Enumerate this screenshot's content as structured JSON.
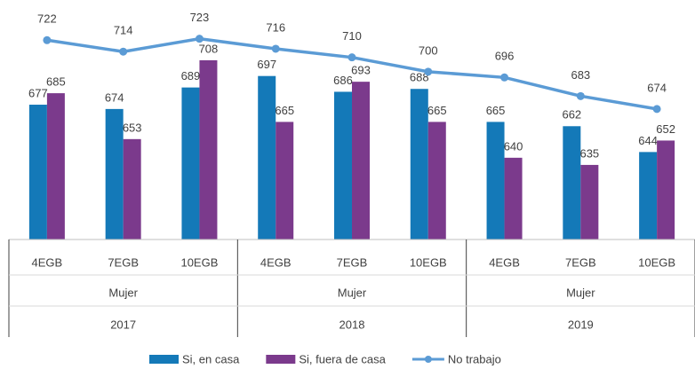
{
  "chart_data": {
    "type": "bar-line",
    "categories": [
      "4EGB",
      "7EGB",
      "10EGB",
      "4EGB",
      "7EGB",
      "10EGB",
      "4EGB",
      "7EGB",
      "10EGB"
    ],
    "groups": [
      {
        "label": "Mujer",
        "year": "2017"
      },
      {
        "label": "Mujer",
        "year": "2018"
      },
      {
        "label": "Mujer",
        "year": "2019"
      }
    ],
    "series": [
      {
        "name": "Si, en casa",
        "type": "bar",
        "color": "#1479b8",
        "values": [
          677,
          674,
          689,
          697,
          686,
          688,
          665,
          662,
          644
        ]
      },
      {
        "name": "Si, fuera de casa",
        "type": "bar",
        "color": "#7b3a8c",
        "values": [
          685,
          653,
          708,
          665,
          693,
          665,
          640,
          635,
          652
        ]
      },
      {
        "name": "No trabajo",
        "type": "line",
        "color": "#5b9bd5",
        "values": [
          722,
          714,
          723,
          716,
          710,
          700,
          696,
          683,
          674
        ]
      }
    ],
    "ylim": [
      583,
      750
    ],
    "legend": "bottom"
  }
}
